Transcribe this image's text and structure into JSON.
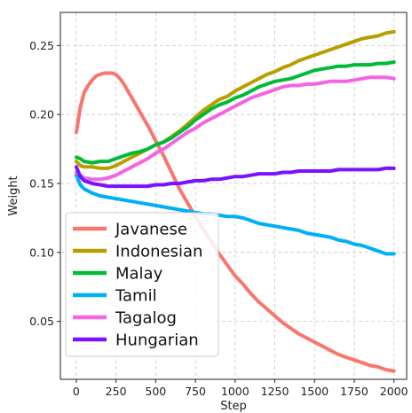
{
  "chart_data": {
    "type": "line",
    "xlabel": "Step",
    "ylabel": "Weight",
    "xlim": [
      -100,
      2080
    ],
    "ylim": [
      0.008,
      0.274
    ],
    "xticks": [
      0,
      250,
      500,
      750,
      1000,
      1250,
      1500,
      1750,
      2000
    ],
    "yticks": [
      0.05,
      0.1,
      0.15,
      0.2,
      0.25
    ],
    "ytick_labels": [
      "0.05",
      "0.10",
      "0.15",
      "0.20",
      "0.25"
    ],
    "grid": true,
    "legend_position": "lower-left",
    "series": [
      {
        "name": "Javanese",
        "color": "#f8766d",
        "x": [
          0,
          25,
          50,
          75,
          100,
          125,
          150,
          175,
          200,
          225,
          250,
          275,
          300,
          350,
          400,
          450,
          500,
          550,
          600,
          650,
          700,
          750,
          800,
          850,
          900,
          950,
          1000,
          1050,
          1100,
          1150,
          1200,
          1250,
          1300,
          1350,
          1400,
          1450,
          1500,
          1550,
          1600,
          1650,
          1700,
          1750,
          1800,
          1850,
          1900,
          1950,
          2000
        ],
        "values": [
          0.187,
          0.205,
          0.216,
          0.221,
          0.225,
          0.228,
          0.229,
          0.23,
          0.23,
          0.23,
          0.229,
          0.226,
          0.222,
          0.212,
          0.202,
          0.192,
          0.181,
          0.17,
          0.158,
          0.146,
          0.136,
          0.126,
          0.117,
          0.108,
          0.099,
          0.091,
          0.083,
          0.077,
          0.07,
          0.064,
          0.059,
          0.054,
          0.049,
          0.045,
          0.041,
          0.038,
          0.035,
          0.032,
          0.029,
          0.026,
          0.024,
          0.022,
          0.02,
          0.018,
          0.017,
          0.015,
          0.014
        ]
      },
      {
        "name": "Indonesian",
        "color": "#b79f00",
        "x": [
          0,
          25,
          50,
          100,
          150,
          200,
          250,
          300,
          350,
          400,
          450,
          500,
          550,
          600,
          650,
          700,
          750,
          800,
          850,
          900,
          950,
          1000,
          1050,
          1100,
          1150,
          1200,
          1250,
          1300,
          1350,
          1400,
          1450,
          1500,
          1550,
          1600,
          1650,
          1700,
          1750,
          1800,
          1850,
          1900,
          1950,
          2000
        ],
        "values": [
          0.166,
          0.163,
          0.162,
          0.162,
          0.161,
          0.161,
          0.163,
          0.166,
          0.169,
          0.172,
          0.175,
          0.178,
          0.18,
          0.184,
          0.188,
          0.193,
          0.198,
          0.203,
          0.207,
          0.211,
          0.213,
          0.217,
          0.22,
          0.223,
          0.226,
          0.229,
          0.231,
          0.234,
          0.236,
          0.239,
          0.241,
          0.243,
          0.245,
          0.247,
          0.249,
          0.251,
          0.253,
          0.255,
          0.256,
          0.257,
          0.259,
          0.26
        ]
      },
      {
        "name": "Malay",
        "color": "#00ba38",
        "x": [
          0,
          25,
          50,
          100,
          150,
          200,
          250,
          300,
          350,
          400,
          450,
          500,
          550,
          600,
          650,
          700,
          750,
          800,
          850,
          900,
          950,
          1000,
          1050,
          1100,
          1150,
          1200,
          1250,
          1300,
          1350,
          1400,
          1450,
          1500,
          1550,
          1600,
          1650,
          1700,
          1750,
          1800,
          1850,
          1900,
          1950,
          2000
        ],
        "values": [
          0.169,
          0.168,
          0.166,
          0.165,
          0.166,
          0.166,
          0.168,
          0.17,
          0.172,
          0.173,
          0.175,
          0.178,
          0.18,
          0.183,
          0.187,
          0.191,
          0.196,
          0.2,
          0.204,
          0.207,
          0.209,
          0.212,
          0.214,
          0.217,
          0.22,
          0.222,
          0.224,
          0.225,
          0.226,
          0.228,
          0.23,
          0.232,
          0.233,
          0.234,
          0.235,
          0.235,
          0.236,
          0.236,
          0.236,
          0.237,
          0.237,
          0.238
        ]
      },
      {
        "name": "Tamil",
        "color": "#00b0f6",
        "x": [
          0,
          25,
          50,
          100,
          150,
          200,
          250,
          300,
          350,
          400,
          450,
          500,
          550,
          600,
          650,
          700,
          750,
          800,
          850,
          900,
          950,
          1000,
          1050,
          1100,
          1150,
          1200,
          1250,
          1300,
          1350,
          1400,
          1450,
          1500,
          1550,
          1600,
          1650,
          1700,
          1750,
          1800,
          1850,
          1900,
          1950,
          2000
        ],
        "values": [
          0.156,
          0.149,
          0.146,
          0.143,
          0.141,
          0.14,
          0.139,
          0.138,
          0.137,
          0.136,
          0.135,
          0.134,
          0.133,
          0.132,
          0.131,
          0.13,
          0.129,
          0.128,
          0.128,
          0.127,
          0.126,
          0.126,
          0.125,
          0.123,
          0.121,
          0.12,
          0.119,
          0.118,
          0.117,
          0.116,
          0.114,
          0.113,
          0.112,
          0.111,
          0.109,
          0.108,
          0.106,
          0.105,
          0.103,
          0.101,
          0.099,
          0.099
        ]
      },
      {
        "name": "Tagalog",
        "color": "#f564e3",
        "x": [
          0,
          25,
          50,
          100,
          150,
          200,
          250,
          300,
          350,
          400,
          450,
          500,
          550,
          600,
          650,
          700,
          750,
          800,
          850,
          900,
          950,
          1000,
          1050,
          1100,
          1150,
          1200,
          1250,
          1300,
          1350,
          1400,
          1450,
          1500,
          1550,
          1600,
          1650,
          1700,
          1750,
          1800,
          1850,
          1900,
          1950,
          2000
        ],
        "values": [
          0.158,
          0.156,
          0.154,
          0.153,
          0.153,
          0.154,
          0.156,
          0.159,
          0.162,
          0.165,
          0.168,
          0.172,
          0.175,
          0.179,
          0.183,
          0.187,
          0.19,
          0.194,
          0.197,
          0.2,
          0.203,
          0.206,
          0.209,
          0.212,
          0.214,
          0.216,
          0.218,
          0.22,
          0.221,
          0.221,
          0.222,
          0.222,
          0.223,
          0.224,
          0.224,
          0.224,
          0.225,
          0.226,
          0.227,
          0.227,
          0.227,
          0.226
        ]
      },
      {
        "name": "Hungarian",
        "color": "#7a12ff",
        "x": [
          0,
          25,
          50,
          100,
          150,
          200,
          250,
          300,
          350,
          400,
          450,
          500,
          550,
          600,
          650,
          700,
          750,
          800,
          850,
          900,
          950,
          1000,
          1050,
          1100,
          1150,
          1200,
          1250,
          1300,
          1350,
          1400,
          1450,
          1500,
          1550,
          1600,
          1650,
          1700,
          1750,
          1800,
          1850,
          1900,
          1950,
          2000
        ],
        "values": [
          0.162,
          0.155,
          0.152,
          0.15,
          0.149,
          0.148,
          0.148,
          0.148,
          0.148,
          0.148,
          0.148,
          0.149,
          0.149,
          0.15,
          0.15,
          0.151,
          0.152,
          0.152,
          0.153,
          0.153,
          0.154,
          0.155,
          0.155,
          0.156,
          0.157,
          0.157,
          0.157,
          0.158,
          0.158,
          0.159,
          0.159,
          0.159,
          0.159,
          0.159,
          0.16,
          0.16,
          0.16,
          0.16,
          0.16,
          0.16,
          0.161,
          0.161
        ]
      }
    ]
  }
}
